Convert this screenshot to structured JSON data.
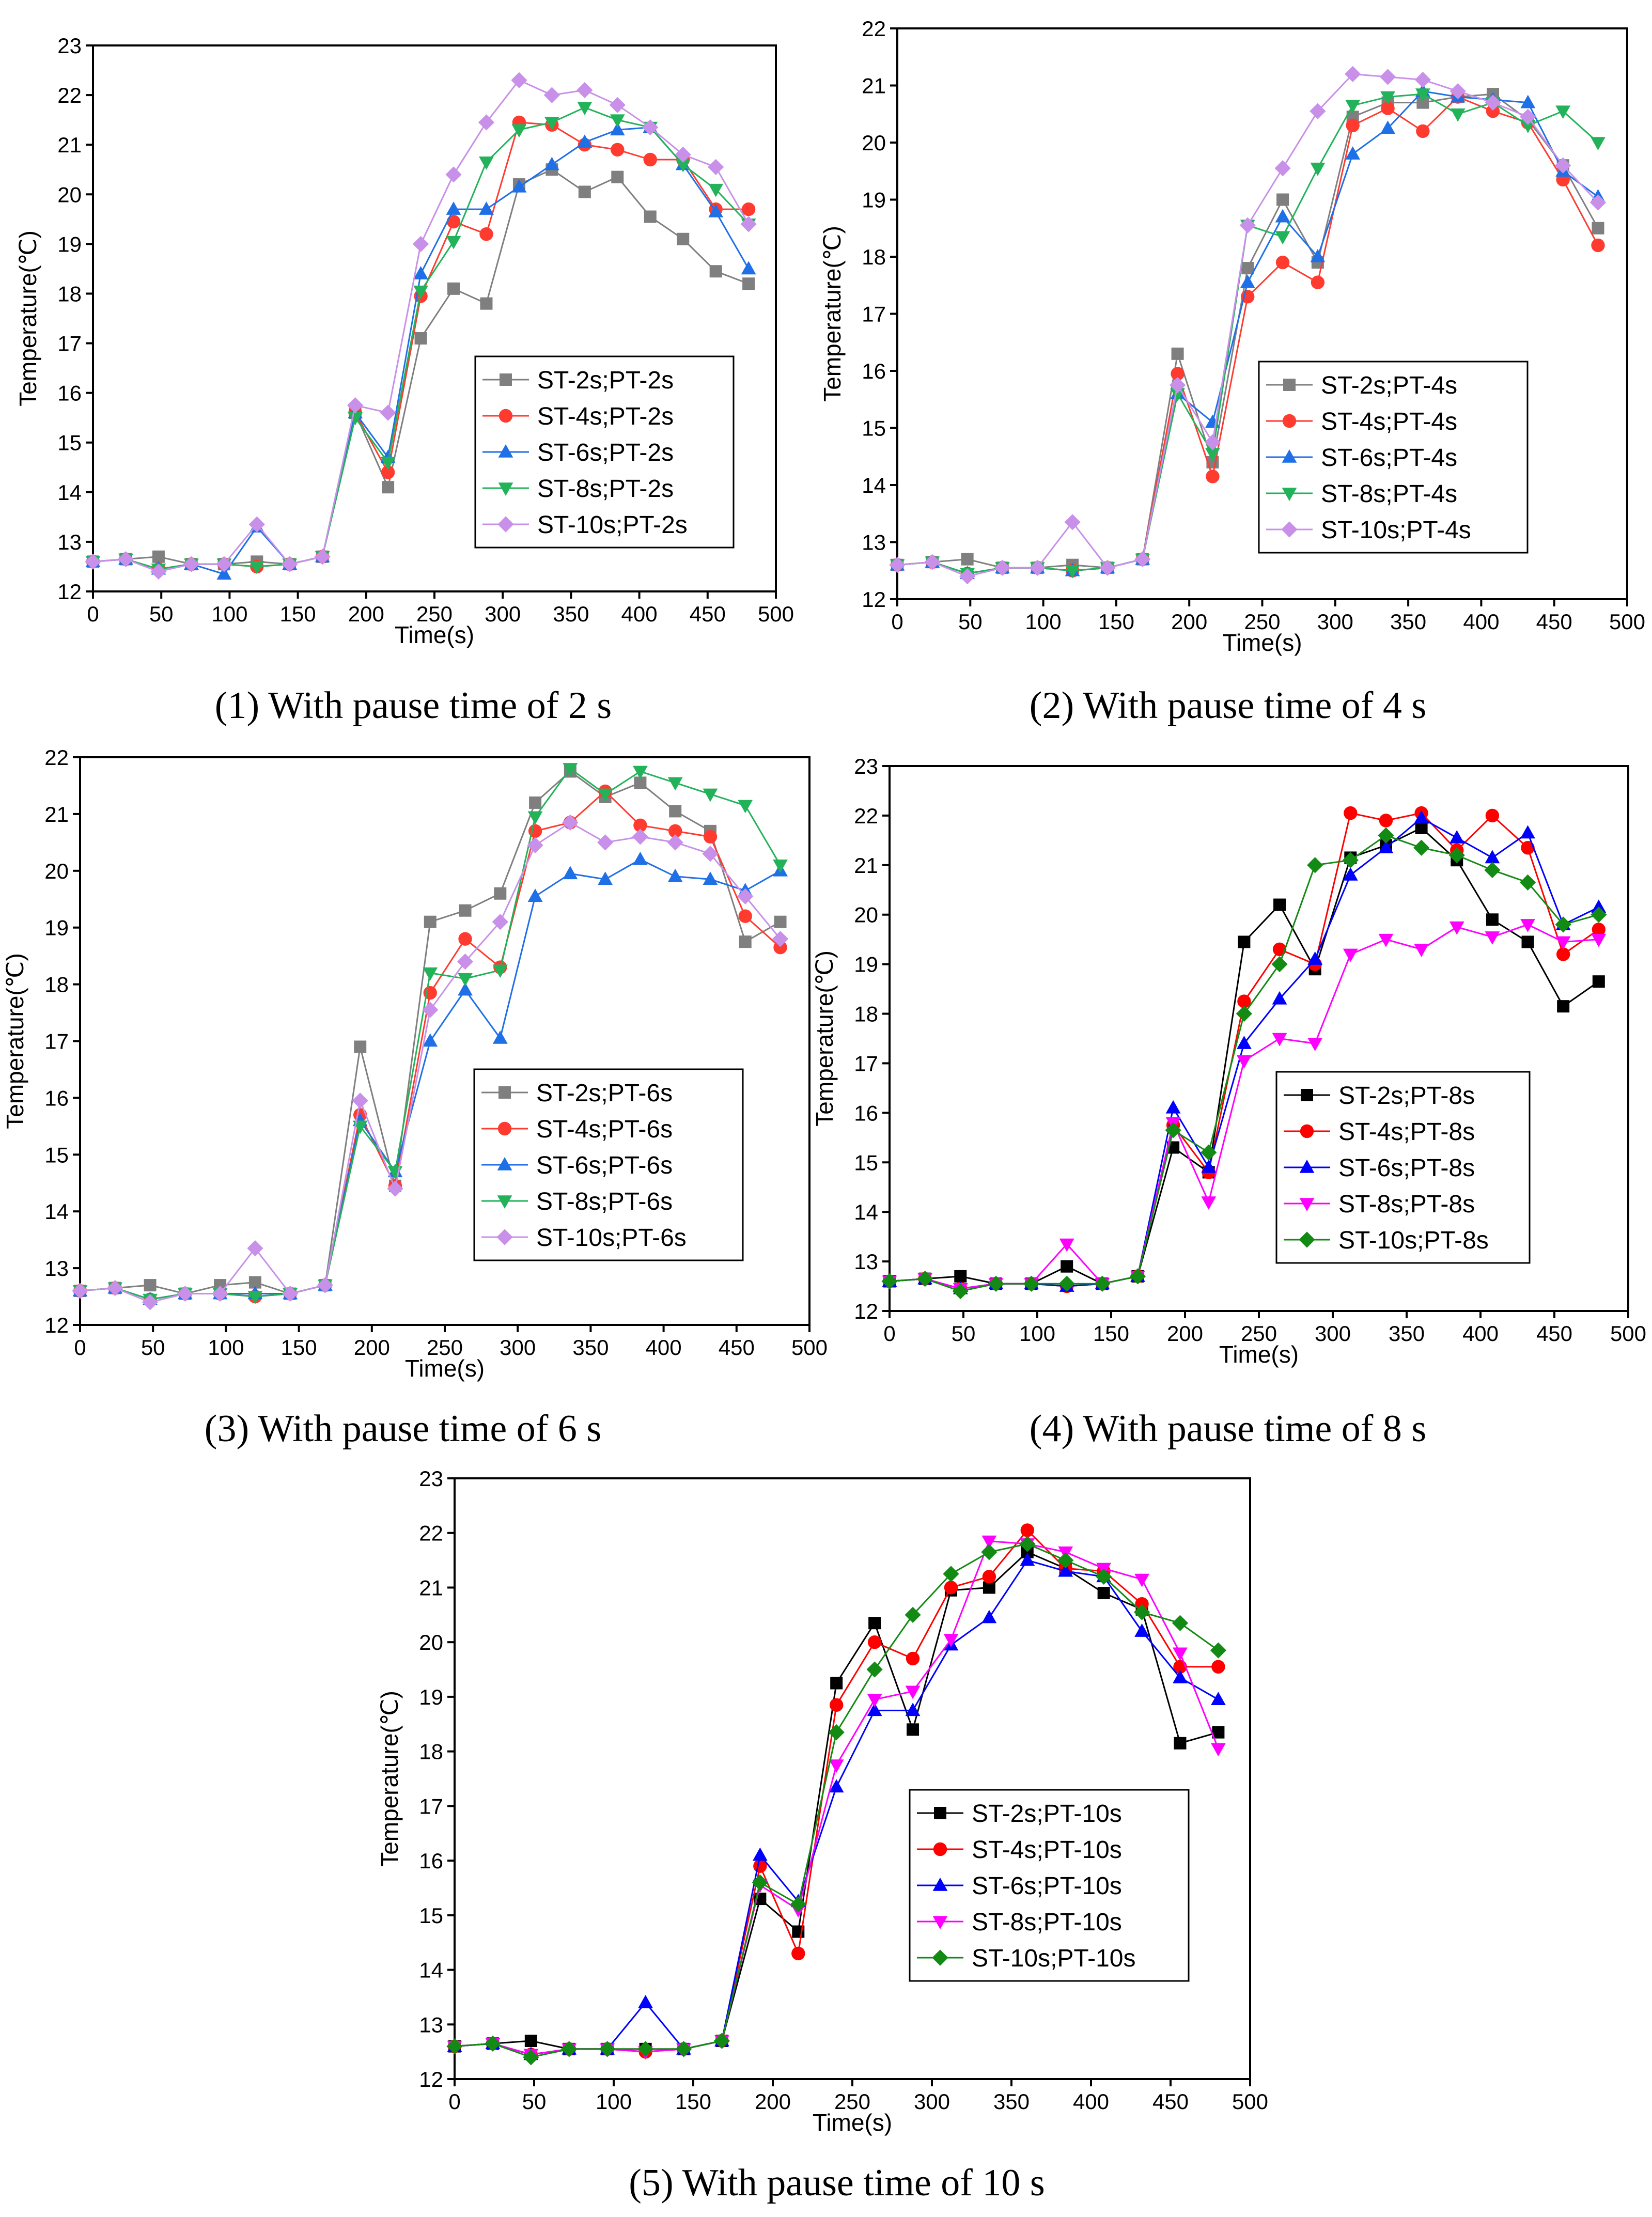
{
  "figure": {
    "colors": {
      "gray": "#7f7f7f",
      "red": "#ff3b30",
      "blue": "#1f6fe6",
      "green": "#22b35a",
      "violet": "#c890e8",
      "black": "#000000",
      "pure_red": "#ff0000",
      "pure_blue": "#0000ff",
      "magenta": "#ff00ff",
      "dark_green": "#138a13"
    }
  },
  "chart_data": [
    {
      "type": "line",
      "caption": "(1) With pause time of 2 s",
      "xlabel": "Time(s)",
      "ylabel": "Temperature(℃)",
      "xlim": [
        0,
        500
      ],
      "ylim": [
        12,
        23
      ],
      "xticks": [
        0,
        50,
        100,
        150,
        200,
        250,
        300,
        350,
        400,
        450,
        500
      ],
      "yticks": [
        12,
        13,
        14,
        15,
        16,
        17,
        18,
        19,
        20,
        21,
        22,
        23
      ],
      "legend_position": "center-right",
      "x": [
        0,
        24,
        48,
        72,
        96,
        120,
        144,
        168,
        192,
        216,
        240,
        264,
        288,
        312,
        336,
        360,
        384,
        408,
        432,
        456,
        480
      ],
      "series": [
        {
          "name": "ST-2s;PT-2s",
          "color": "#7f7f7f",
          "marker": "square",
          "values": [
            12.6,
            12.65,
            12.7,
            12.55,
            12.55,
            12.6,
            12.55,
            12.7,
            15.6,
            14.1,
            17.1,
            18.1,
            17.8,
            20.2,
            20.5,
            20.05,
            20.35,
            19.55,
            19.1,
            18.45,
            18.2
          ]
        },
        {
          "name": "ST-4s;PT-2s",
          "color": "#ff3b30",
          "marker": "circle",
          "values": [
            12.6,
            12.65,
            12.45,
            12.55,
            12.55,
            12.5,
            12.55,
            12.7,
            15.6,
            14.4,
            17.95,
            19.45,
            19.2,
            21.45,
            21.4,
            21.0,
            20.9,
            20.7,
            20.7,
            19.7,
            19.7
          ]
        },
        {
          "name": "ST-6s;PT-2s",
          "color": "#1f6fe6",
          "marker": "triangle-up",
          "values": [
            12.6,
            12.65,
            12.45,
            12.55,
            12.35,
            13.3,
            12.55,
            12.7,
            15.6,
            14.7,
            18.4,
            19.7,
            19.7,
            20.15,
            20.6,
            21.05,
            21.3,
            21.35,
            20.6,
            19.65,
            18.5
          ]
        },
        {
          "name": "ST-8s;PT-2s",
          "color": "#22b35a",
          "marker": "triangle-down",
          "values": [
            12.6,
            12.65,
            12.45,
            12.55,
            12.55,
            12.5,
            12.55,
            12.7,
            15.5,
            14.6,
            18.05,
            19.05,
            20.65,
            21.3,
            21.45,
            21.75,
            21.5,
            21.35,
            20.6,
            20.1,
            19.4
          ]
        },
        {
          "name": "ST-10s;PT-2s",
          "color": "#c890e8",
          "marker": "diamond",
          "values": [
            12.6,
            12.65,
            12.4,
            12.55,
            12.55,
            13.35,
            12.55,
            12.7,
            15.75,
            15.6,
            19.0,
            20.4,
            21.45,
            22.3,
            22.0,
            22.1,
            21.8,
            21.35,
            20.8,
            20.55,
            19.4
          ]
        }
      ]
    },
    {
      "type": "line",
      "caption": "(2) With pause time of 4 s",
      "xlabel": "Time(s)",
      "ylabel": "Temperature(℃)",
      "xlim": [
        0,
        500
      ],
      "ylim": [
        12,
        22
      ],
      "xticks": [
        0,
        50,
        100,
        150,
        200,
        250,
        300,
        350,
        400,
        450,
        500
      ],
      "yticks": [
        12,
        13,
        14,
        15,
        16,
        17,
        18,
        19,
        20,
        21,
        22
      ],
      "legend_position": "center-right",
      "x": [
        0,
        24,
        48,
        72,
        96,
        120,
        144,
        168,
        192,
        216,
        240,
        264,
        288,
        312,
        336,
        360,
        384,
        408,
        432,
        456,
        480
      ],
      "series": [
        {
          "name": "ST-2s;PT-4s",
          "color": "#7f7f7f",
          "marker": "square",
          "values": [
            12.6,
            12.65,
            12.7,
            12.55,
            12.55,
            12.6,
            12.55,
            12.7,
            16.3,
            14.4,
            17.8,
            19.0,
            17.9,
            20.45,
            20.7,
            20.7,
            20.8,
            20.85,
            20.4,
            19.6,
            18.5
          ]
        },
        {
          "name": "ST-4s;PT-4s",
          "color": "#ff3b30",
          "marker": "circle",
          "values": [
            12.6,
            12.65,
            12.45,
            12.55,
            12.55,
            12.5,
            12.55,
            12.7,
            15.95,
            14.15,
            17.3,
            17.9,
            17.55,
            20.3,
            20.6,
            20.2,
            20.8,
            20.55,
            20.35,
            19.35,
            18.2
          ]
        },
        {
          "name": "ST-6s;PT-4s",
          "color": "#1f6fe6",
          "marker": "triangle-up",
          "values": [
            12.6,
            12.65,
            12.45,
            12.55,
            12.55,
            12.5,
            12.55,
            12.7,
            15.6,
            15.1,
            17.55,
            18.7,
            18.0,
            19.8,
            20.25,
            20.9,
            20.8,
            20.75,
            20.7,
            19.5,
            19.05
          ]
        },
        {
          "name": "ST-8s;PT-4s",
          "color": "#22b35a",
          "marker": "triangle-down",
          "values": [
            12.6,
            12.65,
            12.45,
            12.55,
            12.55,
            12.5,
            12.55,
            12.7,
            15.6,
            14.55,
            18.55,
            18.35,
            19.55,
            20.65,
            20.8,
            20.85,
            20.5,
            20.7,
            20.3,
            20.55,
            20.0
          ]
        },
        {
          "name": "ST-10s;PT-4s",
          "color": "#c890e8",
          "marker": "diamond",
          "values": [
            12.6,
            12.65,
            12.4,
            12.55,
            12.55,
            13.35,
            12.55,
            12.7,
            15.75,
            14.75,
            18.55,
            19.55,
            20.55,
            21.2,
            21.15,
            21.1,
            20.9,
            20.7,
            20.45,
            19.6,
            18.95
          ]
        }
      ]
    },
    {
      "type": "line",
      "caption": "(3) With pause time of 6 s",
      "xlabel": "Time(s)",
      "ylabel": "Temperature(℃)",
      "xlim": [
        0,
        500
      ],
      "ylim": [
        12,
        22
      ],
      "xticks": [
        0,
        50,
        100,
        150,
        200,
        250,
        300,
        350,
        400,
        450,
        500
      ],
      "yticks": [
        12,
        13,
        14,
        15,
        16,
        17,
        18,
        19,
        20,
        21,
        22
      ],
      "legend_position": "center-right",
      "x": [
        0,
        24,
        48,
        72,
        96,
        120,
        144,
        168,
        192,
        216,
        240,
        264,
        288,
        312,
        336,
        360,
        384,
        408,
        432,
        456,
        480
      ],
      "series": [
        {
          "name": "ST-2s;PT-6s",
          "color": "#7f7f7f",
          "marker": "square",
          "values": [
            12.6,
            12.65,
            12.7,
            12.55,
            12.7,
            12.75,
            12.55,
            12.7,
            16.9,
            14.45,
            19.1,
            19.3,
            19.6,
            21.2,
            21.75,
            21.3,
            21.55,
            21.05,
            20.7,
            18.75,
            19.1
          ]
        },
        {
          "name": "ST-4s;PT-6s",
          "color": "#ff3b30",
          "marker": "circle",
          "values": [
            12.6,
            12.65,
            12.45,
            12.55,
            12.55,
            12.5,
            12.55,
            12.7,
            15.7,
            14.45,
            17.85,
            18.8,
            18.3,
            20.7,
            20.85,
            21.4,
            20.8,
            20.7,
            20.6,
            19.2,
            18.65
          ]
        },
        {
          "name": "ST-6s;PT-6s",
          "color": "#1f6fe6",
          "marker": "triangle-up",
          "values": [
            12.6,
            12.65,
            12.45,
            12.55,
            12.55,
            12.55,
            12.55,
            12.7,
            15.6,
            14.7,
            17.0,
            17.9,
            17.05,
            19.55,
            19.95,
            19.85,
            20.2,
            19.9,
            19.85,
            19.65,
            20.0
          ]
        },
        {
          "name": "ST-8s;PT-6s",
          "color": "#22b35a",
          "marker": "triangle-down",
          "values": [
            12.6,
            12.65,
            12.45,
            12.55,
            12.55,
            12.5,
            12.55,
            12.7,
            15.5,
            14.7,
            18.2,
            18.1,
            18.25,
            20.95,
            21.8,
            21.35,
            21.75,
            21.55,
            21.35,
            21.15,
            20.1
          ]
        },
        {
          "name": "ST-10s;PT-6s",
          "color": "#c890e8",
          "marker": "diamond",
          "values": [
            12.6,
            12.65,
            12.4,
            12.55,
            12.55,
            13.35,
            12.55,
            12.7,
            15.95,
            14.4,
            17.55,
            18.4,
            19.1,
            20.45,
            20.85,
            20.5,
            20.6,
            20.5,
            20.3,
            19.55,
            18.8
          ]
        }
      ]
    },
    {
      "type": "line",
      "caption": "(4) With pause time of 8 s",
      "xlabel": "Time(s)",
      "ylabel": "Temperature(℃)",
      "xlim": [
        0,
        500
      ],
      "ylim": [
        12,
        23
      ],
      "xticks": [
        0,
        50,
        100,
        150,
        200,
        250,
        300,
        350,
        400,
        450,
        500
      ],
      "yticks": [
        12,
        13,
        14,
        15,
        16,
        17,
        18,
        19,
        20,
        21,
        22,
        23
      ],
      "legend_position": "center-right",
      "x": [
        0,
        24,
        48,
        72,
        96,
        120,
        144,
        168,
        192,
        216,
        240,
        264,
        288,
        312,
        336,
        360,
        384,
        408,
        432,
        456,
        480
      ],
      "series": [
        {
          "name": "ST-2s;PT-8s",
          "color": "#000000",
          "marker": "square",
          "values": [
            12.6,
            12.65,
            12.7,
            12.55,
            12.55,
            12.9,
            12.55,
            12.7,
            15.3,
            14.8,
            19.45,
            20.2,
            18.9,
            21.15,
            21.4,
            21.75,
            21.1,
            19.9,
            19.45,
            18.15,
            18.65
          ]
        },
        {
          "name": "ST-4s;PT-8s",
          "color": "#ff0000",
          "marker": "circle",
          "values": [
            12.6,
            12.65,
            12.45,
            12.55,
            12.55,
            12.5,
            12.55,
            12.7,
            15.75,
            14.8,
            18.25,
            19.3,
            19.0,
            22.05,
            21.9,
            22.05,
            21.3,
            22.0,
            21.35,
            19.2,
            19.7
          ]
        },
        {
          "name": "ST-6s;PT-8s",
          "color": "#0000ff",
          "marker": "triangle-up",
          "values": [
            12.6,
            12.65,
            12.45,
            12.55,
            12.55,
            12.5,
            12.55,
            12.7,
            16.1,
            14.9,
            17.4,
            18.3,
            19.1,
            20.8,
            21.35,
            21.95,
            21.55,
            21.15,
            21.65,
            19.8,
            20.15
          ]
        },
        {
          "name": "ST-8s;PT-8s",
          "color": "#ff00ff",
          "marker": "triangle-down",
          "values": [
            12.6,
            12.65,
            12.45,
            12.55,
            12.55,
            13.35,
            12.55,
            12.7,
            15.8,
            14.2,
            17.05,
            17.5,
            17.4,
            19.2,
            19.5,
            19.3,
            19.75,
            19.55,
            19.8,
            19.45,
            19.5
          ]
        },
        {
          "name": "ST-10s;PT-8s",
          "color": "#138a13",
          "marker": "diamond",
          "values": [
            12.6,
            12.65,
            12.4,
            12.55,
            12.55,
            12.55,
            12.55,
            12.7,
            15.65,
            15.2,
            18.0,
            19.0,
            21.0,
            21.1,
            21.6,
            21.35,
            21.2,
            20.9,
            20.65,
            19.8,
            20.0
          ]
        }
      ]
    },
    {
      "type": "line",
      "caption": "(5) With pause time of 10 s",
      "xlabel": "Time(s)",
      "ylabel": "Temperature(℃)",
      "xlim": [
        0,
        500
      ],
      "ylim": [
        12,
        23
      ],
      "xticks": [
        0,
        50,
        100,
        150,
        200,
        250,
        300,
        350,
        400,
        450,
        500
      ],
      "yticks": [
        12,
        13,
        14,
        15,
        16,
        17,
        18,
        19,
        20,
        21,
        22,
        23
      ],
      "legend_position": "center-right",
      "x": [
        0,
        24,
        48,
        72,
        96,
        120,
        144,
        168,
        192,
        216,
        240,
        264,
        288,
        312,
        336,
        360,
        384,
        408,
        432,
        456,
        480
      ],
      "series": [
        {
          "name": "ST-2s;PT-10s",
          "color": "#000000",
          "marker": "square",
          "values": [
            12.6,
            12.65,
            12.7,
            12.55,
            12.55,
            12.55,
            12.55,
            12.7,
            15.3,
            14.7,
            19.25,
            20.35,
            18.4,
            20.95,
            21.0,
            21.65,
            21.35,
            20.9,
            20.6,
            18.15,
            18.35
          ]
        },
        {
          "name": "ST-4s;PT-10s",
          "color": "#ff0000",
          "marker": "circle",
          "values": [
            12.6,
            12.65,
            12.45,
            12.55,
            12.55,
            12.5,
            12.55,
            12.7,
            15.9,
            14.3,
            18.85,
            20.0,
            19.7,
            21.0,
            21.2,
            22.05,
            21.35,
            21.3,
            20.7,
            19.55,
            19.55
          ]
        },
        {
          "name": "ST-6s;PT-10s",
          "color": "#0000ff",
          "marker": "triangle-up",
          "values": [
            12.6,
            12.65,
            12.45,
            12.55,
            12.55,
            13.4,
            12.55,
            12.7,
            16.1,
            15.25,
            17.35,
            18.75,
            18.75,
            19.95,
            20.45,
            21.5,
            21.3,
            21.2,
            20.2,
            19.35,
            18.95
          ]
        },
        {
          "name": "ST-8s;PT-10s",
          "color": "#ff00ff",
          "marker": "triangle-down",
          "values": [
            12.6,
            12.65,
            12.45,
            12.55,
            12.55,
            12.5,
            12.55,
            12.7,
            15.55,
            15.1,
            17.75,
            18.95,
            19.1,
            20.05,
            21.85,
            21.8,
            21.65,
            21.35,
            21.15,
            19.8,
            18.05
          ]
        },
        {
          "name": "ST-10s;PT-10s",
          "color": "#138a13",
          "marker": "diamond",
          "values": [
            12.6,
            12.65,
            12.4,
            12.55,
            12.55,
            12.55,
            12.55,
            12.7,
            15.6,
            15.2,
            18.35,
            19.5,
            20.5,
            21.25,
            21.65,
            21.8,
            21.5,
            21.2,
            20.55,
            20.35,
            19.85
          ]
        }
      ]
    }
  ]
}
